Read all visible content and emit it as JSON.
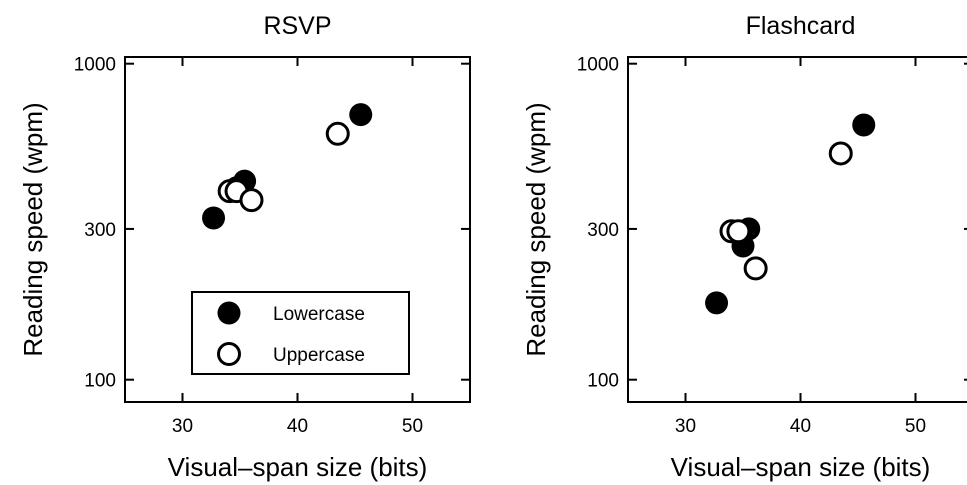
{
  "chart_data": [
    {
      "type": "scatter",
      "title": "RSVP",
      "xlabel": "Visual–span size (bits)",
      "ylabel": "Reading speed (wpm)",
      "x_ticks": [
        30,
        40,
        50
      ],
      "y_ticks": [
        100,
        300,
        1000
      ],
      "xlim": [
        25,
        55
      ],
      "ylim": [
        85,
        1050
      ],
      "y_scale": "log",
      "grid": false,
      "legend": {
        "placement": "bottom-right",
        "entries": [
          {
            "label": "Lowercase",
            "marker": "filled-circle"
          },
          {
            "label": "Uppercase",
            "marker": "open-circle"
          }
        ]
      },
      "series": [
        {
          "name": "Lowercase",
          "marker": "filled",
          "points": [
            [
              32.7,
              325
            ],
            [
              34.7,
              405
            ],
            [
              35.4,
              425
            ],
            [
              45.5,
              690
            ]
          ]
        },
        {
          "name": "Uppercase",
          "marker": "open",
          "points": [
            [
              34.1,
              395
            ],
            [
              34.7,
              395
            ],
            [
              36.0,
              370
            ],
            [
              43.5,
              600
            ]
          ]
        }
      ]
    },
    {
      "type": "scatter",
      "title": "Flashcard",
      "xlabel": "Visual–span size (bits)",
      "ylabel": "Reading speed (wpm)",
      "x_ticks": [
        30,
        40,
        50
      ],
      "y_ticks": [
        100,
        300,
        1000
      ],
      "xlim": [
        25,
        55
      ],
      "ylim": [
        85,
        1050
      ],
      "y_scale": "log",
      "grid": false,
      "series": [
        {
          "name": "Lowercase",
          "marker": "filled",
          "points": [
            [
              32.7,
              175
            ],
            [
              35.0,
              265
            ],
            [
              35.5,
              300
            ],
            [
              45.5,
              640
            ]
          ]
        },
        {
          "name": "Uppercase",
          "marker": "open",
          "points": [
            [
              34.0,
              295
            ],
            [
              34.6,
              295
            ],
            [
              36.1,
              225
            ],
            [
              43.5,
              520
            ]
          ]
        }
      ]
    }
  ]
}
